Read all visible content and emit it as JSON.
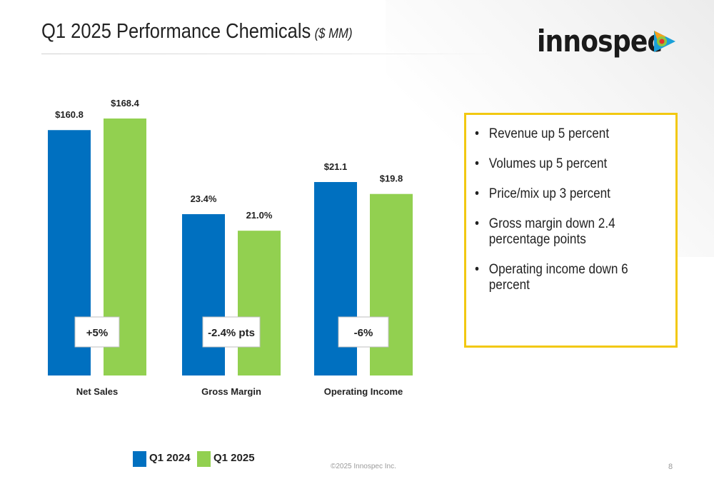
{
  "header": {
    "title": "Q1 2025 Performance Chemicals",
    "units": "($ MM)",
    "logo_text": "innospec"
  },
  "colors": {
    "q1_2024": "#0070c0",
    "q1_2025": "#92d050",
    "box_border": "#f2c811"
  },
  "chart_data": {
    "type": "bar",
    "categories": [
      "Net Sales",
      "Gross Margin",
      "Operating Income"
    ],
    "series": [
      {
        "name": "Q1 2024",
        "values": [
          160.8,
          23.4,
          21.1
        ],
        "labels": [
          "$160.8",
          "23.4%",
          "$21.1"
        ]
      },
      {
        "name": "Q1 2025",
        "values": [
          168.4,
          21.0,
          19.8
        ],
        "labels": [
          "$168.4",
          "21.0%",
          "$19.8"
        ]
      }
    ],
    "change_labels": [
      "+5%",
      "-2.4% pts",
      "-6%"
    ],
    "legend_position": "bottom",
    "grid": false
  },
  "highlights": [
    "Revenue up 5 percent",
    "Volumes up 5 percent",
    "Price/mix up 3 percent",
    "Gross margin down 2.4 percentage points",
    "Operating income down 6 percent"
  ],
  "footer": {
    "copyright": "©2025 Innospec Inc.",
    "page_number": "8"
  }
}
